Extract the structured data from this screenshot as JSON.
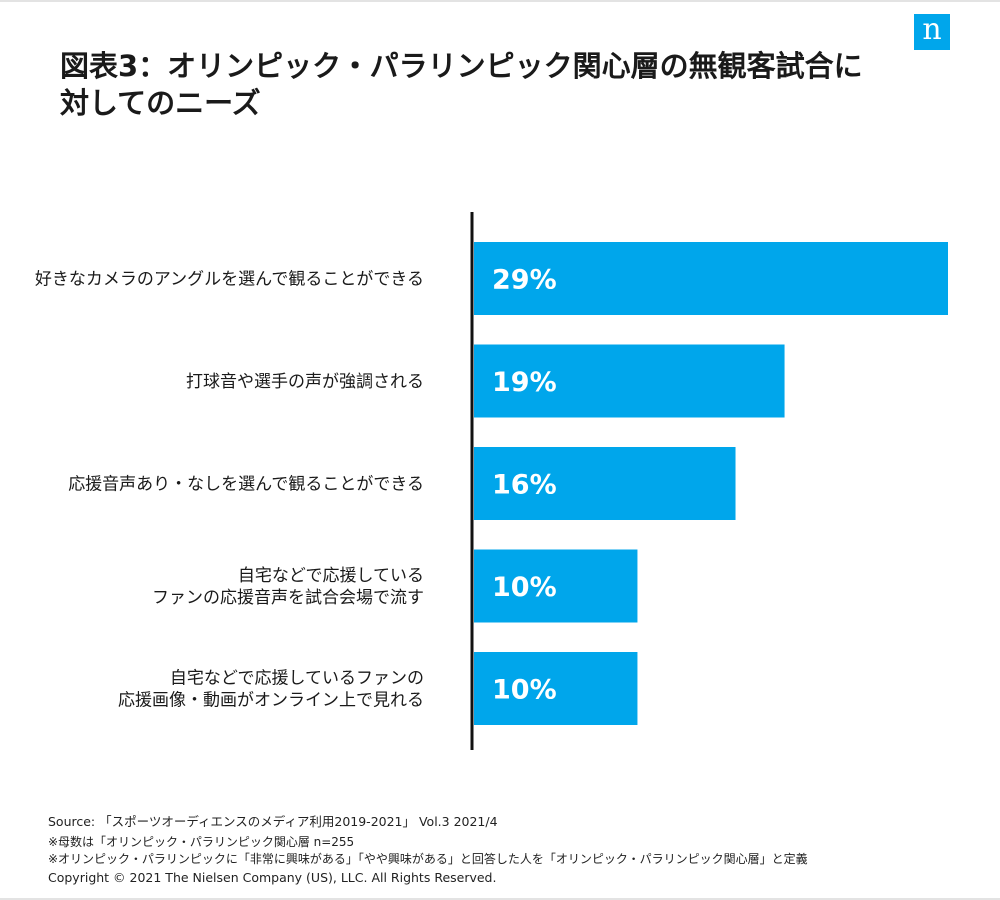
{
  "brand": {
    "logo_text": "n",
    "accent": "#00a6eb"
  },
  "title": "図表3：オリンピック・パラリンピック関心層の無観客試合に対してのニーズ",
  "chart_data": {
    "type": "bar",
    "orientation": "horizontal",
    "title": "図表3：オリンピック・パラリンピック関心層の無観客試合に対してのニーズ",
    "xlabel": "",
    "ylabel": "",
    "xlim": [
      0,
      29
    ],
    "unit": "%",
    "grid": false,
    "bar_color": "#00a6eb",
    "categories": [
      [
        "好きなカメラのアングルを選んで観ることができる"
      ],
      [
        "打球音や選手の声が強調される"
      ],
      [
        "応援音声あり・なしを選んで観ることができる"
      ],
      [
        "自宅などで応援している",
        "ファンの応援音声を試合会場で流す"
      ],
      [
        "自宅などで応援しているファンの",
        "応援画像・動画がオンライン上で見れる"
      ]
    ],
    "values": [
      29,
      19,
      16,
      10,
      10
    ],
    "value_labels": [
      "29%",
      "19%",
      "16%",
      "10%",
      "10%"
    ]
  },
  "footer": {
    "source": "Source: 「スポーツオーディエンスのメディア利用2019-2021」 Vol.3 2021/4",
    "note1": "※母数は「オリンピック・パラリンピック関心層 n=255",
    "note2": "※オリンピック・パラリンピックに「非常に興味がある」「やや興味がある」と回答した人を「オリンピック・パラリンピック関心層」と定義",
    "copyright": "Copyright © 2021 The Nielsen Company (US), LLC. All Rights Reserved."
  }
}
